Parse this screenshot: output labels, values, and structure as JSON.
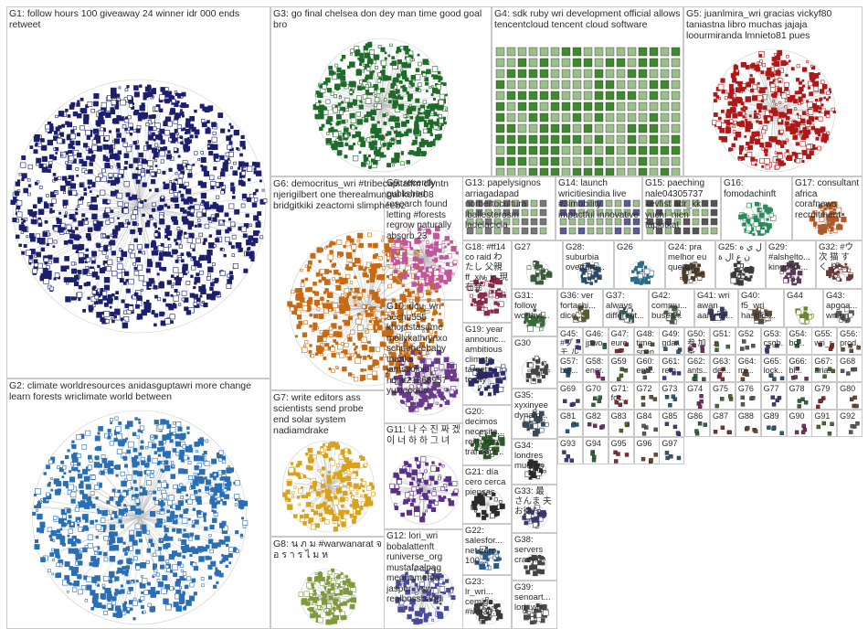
{
  "groups": [
    {
      "label": "G1: follow hours 100 giveaway 24 winner idr 000 ends retweet",
      "color": "#1b1f6e",
      "kind": "cluster"
    },
    {
      "label": "G2: climate worldresources anidasguptawri more change learn forests wriclimate world between",
      "color": "#2a6fb5",
      "kind": "cluster"
    },
    {
      "label": "G3: go final chelsea don dey man time good goal bro",
      "color": "#1f6b2a",
      "kind": "cluster"
    },
    {
      "label": "G4: sdk ruby wri development official allows tencentcloud tencent cloud software",
      "color": "#3f8a2e",
      "kind": "grid"
    },
    {
      "label": "G5: juanlmira_wri gracias vickyf80 taniastna libro muchas jajaja loourmiranda lmnieto81 pues",
      "color": "#b01818",
      "kind": "cluster"
    },
    {
      "label": "G6: democritus_wri #tribecapitalfm clyntn njerigilbert one therealmungai korle08 bridgitkiki zeactomi slimpheebz",
      "color": "#c86a12",
      "kind": "cluster"
    },
    {
      "label": "G7: write editors ass scientists send probe end solar system nadiamdrake",
      "color": "#d9a21a",
      "kind": "cluster"
    },
    {
      "label": "G8: น ภ ม #warwanarat จ อ ร า ร ไ ม ห",
      "color": "#7f9a3a",
      "kind": "cluster"
    },
    {
      "label": "G9: recently published research found letting #forests regrow naturally absorb 23",
      "color": "#c2559c",
      "kind": "cluster"
    },
    {
      "label": "G10: dou_wri aechu555 khojastasame mollykathrynxo schueneebaby thanks jamstlololol hqjat21868957 yuxiaoduo",
      "color": "#6b3a8a",
      "kind": "cluster"
    },
    {
      "label": "G11: 나 수 진 짜 겠 이 너 하 하 그 녀",
      "color": "#5a2f8a",
      "kind": "cluster"
    },
    {
      "label": "G12: lori_wri bobalattenft runiverse_org mustafaalpag meghamehta jasper_vsw realbossbandi",
      "color": "#4a4a9a",
      "kind": "cluster"
    },
    {
      "label": "G13: papelysignos arriagadapad norbertocultura lballesterosm ladelacicla",
      "color": "#777777",
      "kind": "grid"
    },
    {
      "label": "G14: launch wricitiesindia live #3imobility impactful innovative",
      "color": "#5a5a9a",
      "kind": "grid"
    },
    {
      "label": "G15: paeching nale04305737 kevfist adr_kk yuchi_nien tapkitkat",
      "color": "#555555",
      "kind": "grid"
    },
    {
      "label": "G16: fomodachinft",
      "color": "#2a8a5a",
      "kind": "cluster"
    },
    {
      "label": "G17: consultant africa corafnews recruitment",
      "color": "#b05a2a",
      "kind": "cluster"
    },
    {
      "label": "G18: #ff14 co raid わたし 父親 ff_xiv_jp 現在発",
      "color": "#8a2a4a",
      "kind": "cluster"
    },
    {
      "label": "G19: year announc... ambitious climate target today",
      "color": "#2a2a6a",
      "kind": "cluster"
    },
    {
      "label": "G20: decimos necesita... reimagin... transpor...",
      "color": "#2a5a2a",
      "kind": "cluster"
    },
    {
      "label": "G21: día cero cerca piensas",
      "color": "#2a2a2a",
      "kind": "cluster"
    },
    {
      "label": "G22: salesfor... net zero 100...",
      "color": "#2a5a8a",
      "kind": "cluster"
    },
    {
      "label": "G23: lr_wri... cemigo... #iwri30...",
      "color": "#3a3a3a",
      "kind": "cluster"
    },
    {
      "label": "G24: pra melhor eu queria",
      "color": "#4a3a2a",
      "kind": "cluster"
    },
    {
      "label": "G25: ل ي ه ن ع ال ة",
      "color": "#3a3a3a",
      "kind": "cluster"
    },
    {
      "label": "G26",
      "color": "#2a6a8a",
      "kind": "cluster"
    },
    {
      "label": "G27",
      "color": "#3a5a3a",
      "kind": "cluster"
    },
    {
      "label": "G28: suburbia overture...",
      "color": "#2a4a6a",
      "kind": "cluster"
    },
    {
      "label": "G29: #alshelto... kingofsh...",
      "color": "#5a3a5a",
      "kind": "cluster"
    },
    {
      "label": "G30",
      "color": "#444444",
      "kind": "cluster"
    },
    {
      "label": "G31: follow worthyt...",
      "color": "#3a6a3a",
      "kind": "cluster"
    },
    {
      "label": "G32: #ウ 次 猫 す く り...",
      "color": "#6a3a3a",
      "kind": "cluster"
    },
    {
      "label": "G33: 最 さんま 夫 お待た...",
      "color": "#3a3a6a",
      "kind": "cluster"
    },
    {
      "label": "G34: londres mueren",
      "color": "#2a2a2a",
      "kind": "cluster"
    },
    {
      "label": "G35: xyxinyee dynam...",
      "color": "#3a4a5a",
      "kind": "cluster"
    },
    {
      "label": "G36: ver fortachi... dice...",
      "color": "#5a5a3a",
      "kind": "cluster"
    },
    {
      "label": "G37: always different...",
      "color": "#3a5a5a",
      "kind": "cluster"
    },
    {
      "label": "G38: servers crazy...",
      "color": "#444444",
      "kind": "cluster"
    },
    {
      "label": "G39: senoart... lori_wri...",
      "color": "#4a4a4a",
      "kind": "cluster"
    },
    {
      "label": "G40: f5_wri hashks...",
      "color": "#5a4a3a",
      "kind": "cluster"
    },
    {
      "label": "G41: wri awan aahy ta...",
      "color": "#3a3a5a",
      "kind": "cluster"
    },
    {
      "label": "G42: commu... buses...",
      "color": "#4a5a4a",
      "kind": "cluster"
    },
    {
      "label": "G43: apgoa... wri gn",
      "color": "#5a5a5a",
      "kind": "cluster"
    },
    {
      "label": "G44",
      "color": "#6a8a2a",
      "kind": "cluster"
    }
  ],
  "small_labels": [
    "G45: #プ モ ル の...",
    "G46: jpwo... lagi...",
    "G47: euro... esta...",
    "G48: time spen...",
    "G49: gda... oval...",
    "G50: 参 加 条...",
    "G51: ...",
    "G52",
    "G53: csgb...",
    "G54: bc...",
    "G55: wri_r...",
    "G56: prod...",
    "G57: bts...",
    "G58: ener...",
    "G59",
    "G60: entr...",
    "G61: rem...",
    "G62: ants...",
    "G63: der...",
    "G64: mi...",
    "G65: lock...",
    "G66: bl...",
    "G67: aria...",
    "G68",
    "G69",
    "G70",
    "G71: foc...",
    "G72",
    "G73",
    "G74",
    "G75",
    "G76",
    "G77",
    "G78",
    "G79",
    "G80",
    "G81",
    "G82",
    "G83",
    "G84",
    "G85",
    "G86",
    "G87",
    "G88",
    "G89",
    "G90",
    "G91",
    "G92",
    "G93",
    "G94",
    "G95",
    "G96",
    "G97"
  ]
}
